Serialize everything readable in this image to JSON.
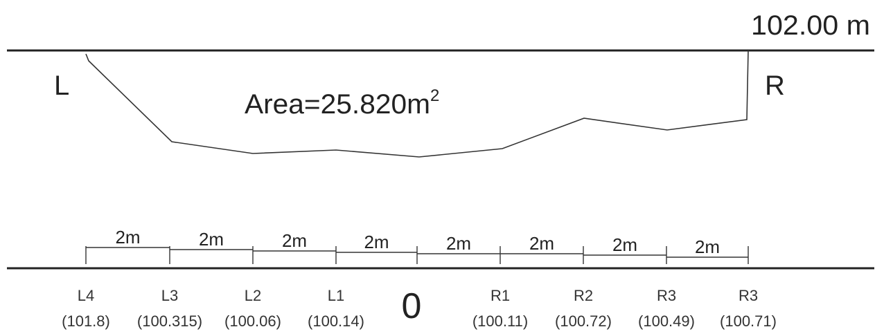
{
  "datum": {
    "label": "102.00 m"
  },
  "section": {
    "left_label": "L",
    "right_label": "R",
    "area_label": "Area=25.820m",
    "area_sup": "2"
  },
  "spacing_label": "2m",
  "stations": [
    {
      "name": "L4",
      "value": "(101.8)"
    },
    {
      "name": "L3",
      "value": "(100.315)"
    },
    {
      "name": "L2",
      "value": "(100.06)"
    },
    {
      "name": "L1",
      "value": "(100.14)"
    },
    {
      "name": "0",
      "value": ""
    },
    {
      "name": "R1",
      "value": "(100.11)"
    },
    {
      "name": "R2",
      "value": "(100.72)"
    },
    {
      "name": "R3",
      "value": "(100.49)"
    },
    {
      "name": "R3",
      "value": "(100.71)"
    }
  ],
  "colors": {
    "line": "#222222",
    "text": "#222222"
  }
}
